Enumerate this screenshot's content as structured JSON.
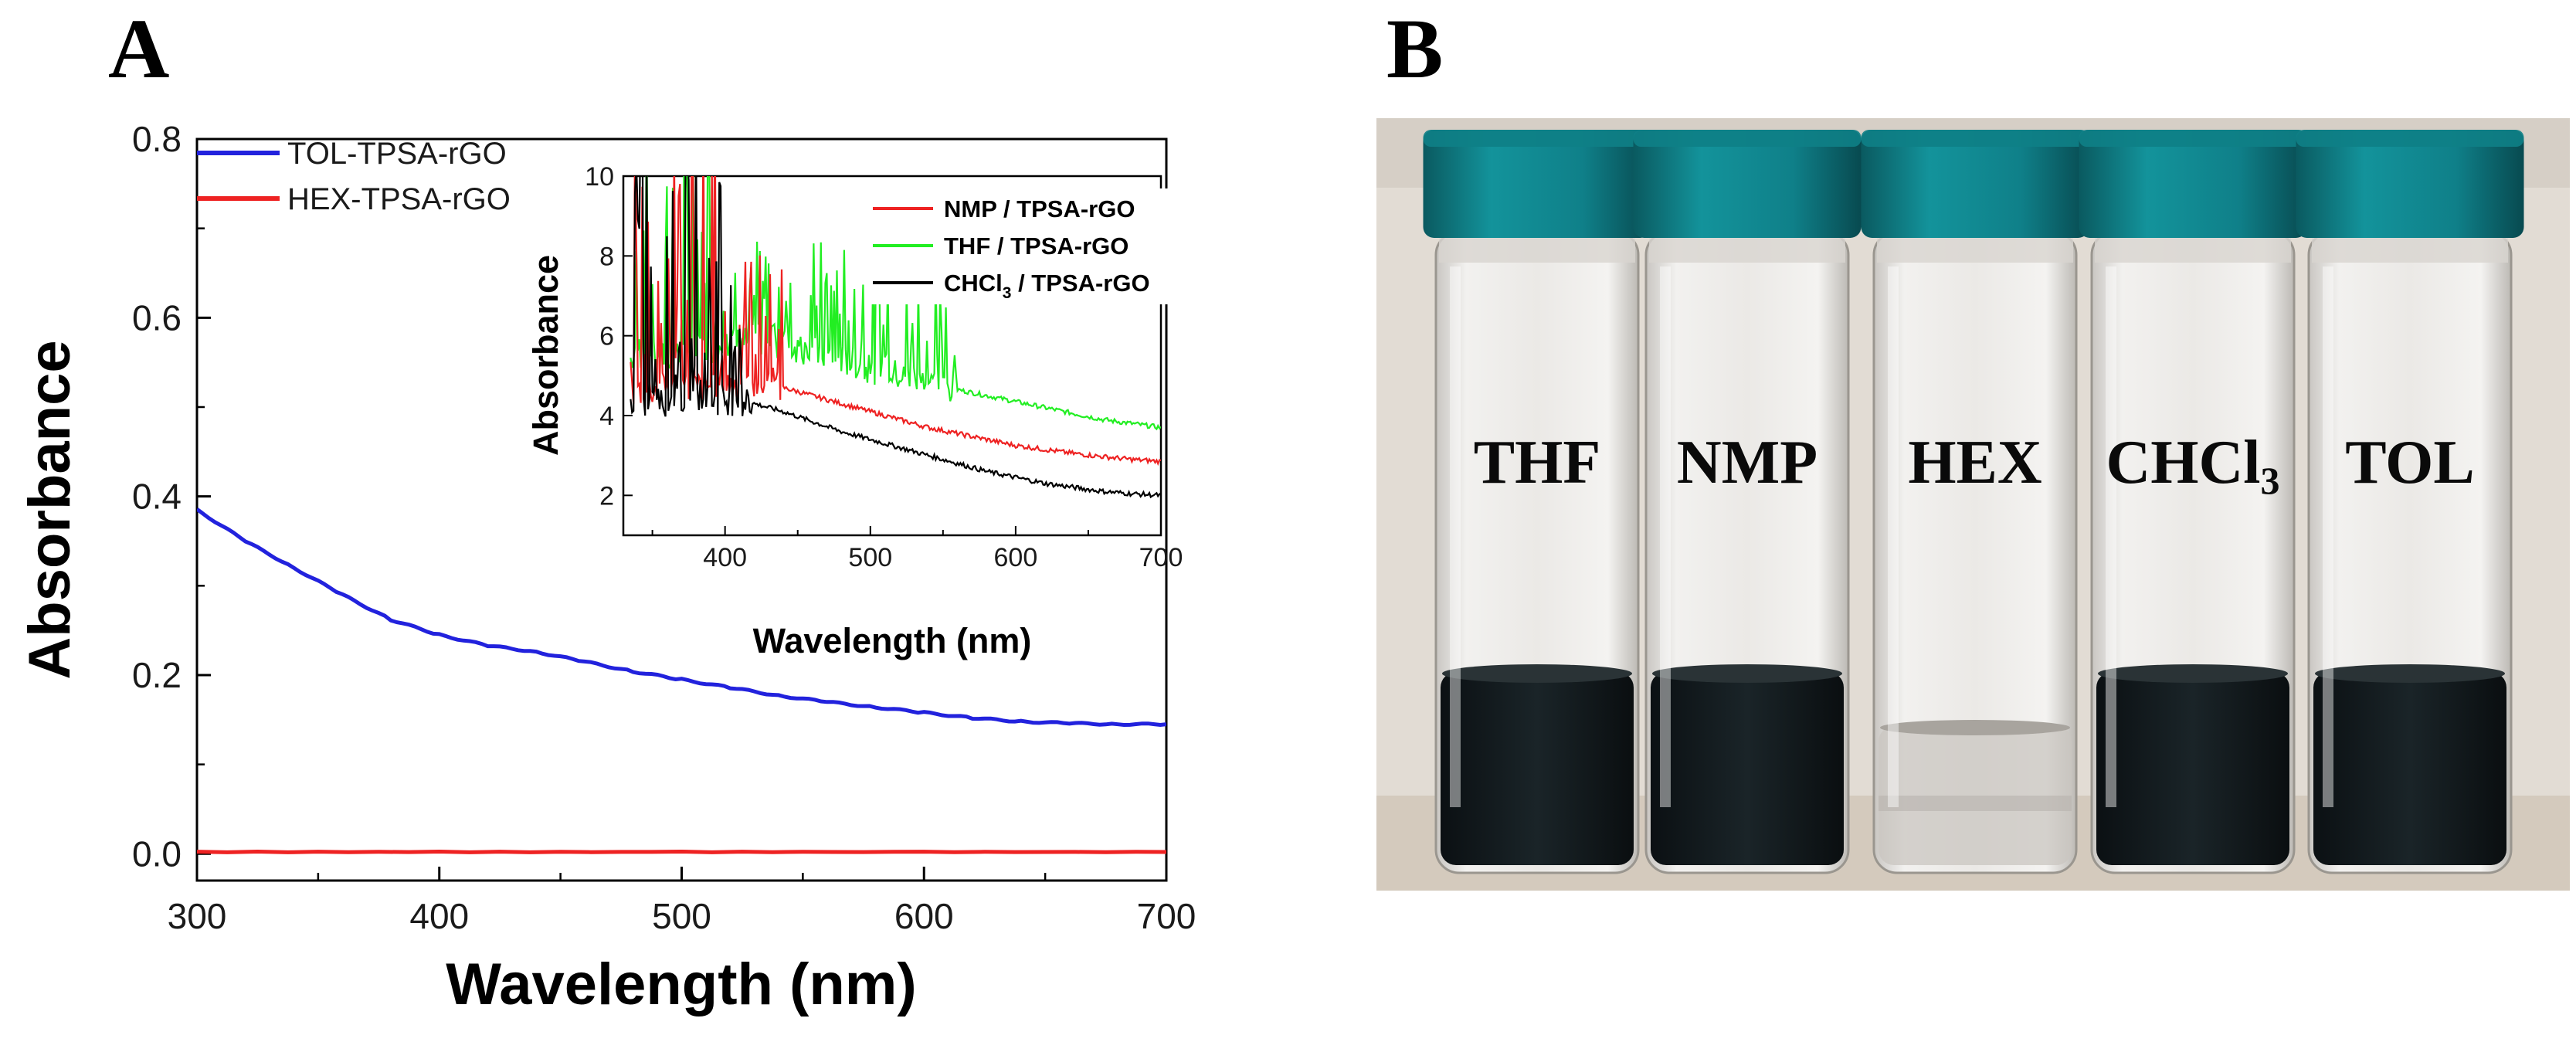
{
  "panel_a_label": "A",
  "panel_b_label": "B",
  "chart_data": [
    {
      "type": "line",
      "title": "",
      "xlabel": "Wavelength (nm)",
      "ylabel": "Absorbance",
      "xlim": [
        300,
        700
      ],
      "ylim": [
        -0.03,
        0.8
      ],
      "xticks": [
        300,
        400,
        500,
        600,
        700
      ],
      "yticks": [
        0.0,
        0.2,
        0.4,
        0.6,
        0.8
      ],
      "xtick_labels": [
        "300",
        "400",
        "500",
        "600",
        "700"
      ],
      "ytick_labels": [
        "0.0",
        "0.2",
        "0.4",
        "0.6",
        "0.8"
      ],
      "legend_position": "top-left",
      "series": [
        {
          "name": "TOL-TPSA-rGO",
          "color": "#2222dd",
          "x": [
            300,
            320,
            340,
            360,
            380,
            400,
            420,
            440,
            460,
            480,
            500,
            520,
            540,
            560,
            580,
            600,
            620,
            640,
            660,
            680,
            700
          ],
          "y": [
            0.385,
            0.35,
            0.32,
            0.29,
            0.262,
            0.245,
            0.233,
            0.226,
            0.215,
            0.204,
            0.195,
            0.186,
            0.177,
            0.17,
            0.164,
            0.158,
            0.152,
            0.148,
            0.146,
            0.145,
            0.145
          ]
        },
        {
          "name": "HEX-TPSA-rGO",
          "color": "#ee2222",
          "x": [
            300,
            400,
            500,
            600,
            700
          ],
          "y": [
            0.002,
            0.002,
            0.002,
            0.002,
            0.002
          ]
        }
      ]
    },
    {
      "type": "line",
      "title": "inset",
      "xlabel": "Wavelength (nm)",
      "ylabel": "Absorbance",
      "xlim": [
        330,
        700
      ],
      "ylim": [
        1,
        10
      ],
      "xticks": [
        400,
        500,
        600,
        700
      ],
      "yticks": [
        2,
        4,
        6,
        8,
        10
      ],
      "xtick_labels": [
        "400",
        "500",
        "600",
        "700"
      ],
      "ytick_labels": [
        "2",
        "4",
        "6",
        "8",
        "10"
      ],
      "legend_position": "top-right",
      "series": [
        {
          "name": "NMP / TPSA-rGO",
          "color": "#ee2222",
          "x": [
            340,
            360,
            380,
            400,
            420,
            440,
            460,
            480,
            500,
            520,
            540,
            560,
            580,
            600,
            620,
            640,
            660,
            680,
            700
          ],
          "y": [
            4.6,
            4.7,
            4.7,
            4.8,
            4.8,
            4.7,
            4.5,
            4.3,
            4.1,
            3.9,
            3.7,
            3.55,
            3.4,
            3.25,
            3.15,
            3.05,
            2.97,
            2.9,
            2.85
          ]
        },
        {
          "name": "THF / TPSA-rGO",
          "color": "#22ee22",
          "x": [
            340,
            360,
            380,
            400,
            420,
            440,
            460,
            480,
            500,
            520,
            540,
            560,
            580,
            600,
            620,
            640,
            660,
            680,
            700
          ],
          "y": [
            5.4,
            5.5,
            5.6,
            5.8,
            5.9,
            5.8,
            5.6,
            5.4,
            5.2,
            5.0,
            4.8,
            4.65,
            4.5,
            4.35,
            4.2,
            4.05,
            3.9,
            3.8,
            3.7
          ]
        },
        {
          "name": "CHCl3 / TPSA-rGO",
          "label_main": "CHCl",
          "label_sub": "3",
          "label_tail": " / TPSA-rGO",
          "color": "#000000",
          "x": [
            340,
            360,
            380,
            400,
            420,
            440,
            460,
            480,
            500,
            520,
            540,
            560,
            580,
            600,
            620,
            640,
            660,
            680,
            700
          ],
          "y": [
            4.3,
            4.35,
            4.4,
            4.4,
            4.3,
            4.1,
            3.85,
            3.6,
            3.4,
            3.2,
            3.0,
            2.8,
            2.6,
            2.45,
            2.3,
            2.2,
            2.1,
            2.04,
            2.0
          ]
        }
      ]
    }
  ],
  "photo": {
    "vials": [
      {
        "label_main": "THF",
        "label_sub": "",
        "state": "dispersed"
      },
      {
        "label_main": "NMP",
        "label_sub": "",
        "state": "dispersed"
      },
      {
        "label_main": "HEX",
        "label_sub": "",
        "state": "clear"
      },
      {
        "label_main": "CHCl",
        "label_sub": "3",
        "state": "dispersed"
      },
      {
        "label_main": "TOL",
        "label_sub": "",
        "state": "dispersed"
      }
    ],
    "cap_color": "#0e7f86",
    "dispersion_color": "#12191c",
    "background_color": "#e2dcd4"
  }
}
